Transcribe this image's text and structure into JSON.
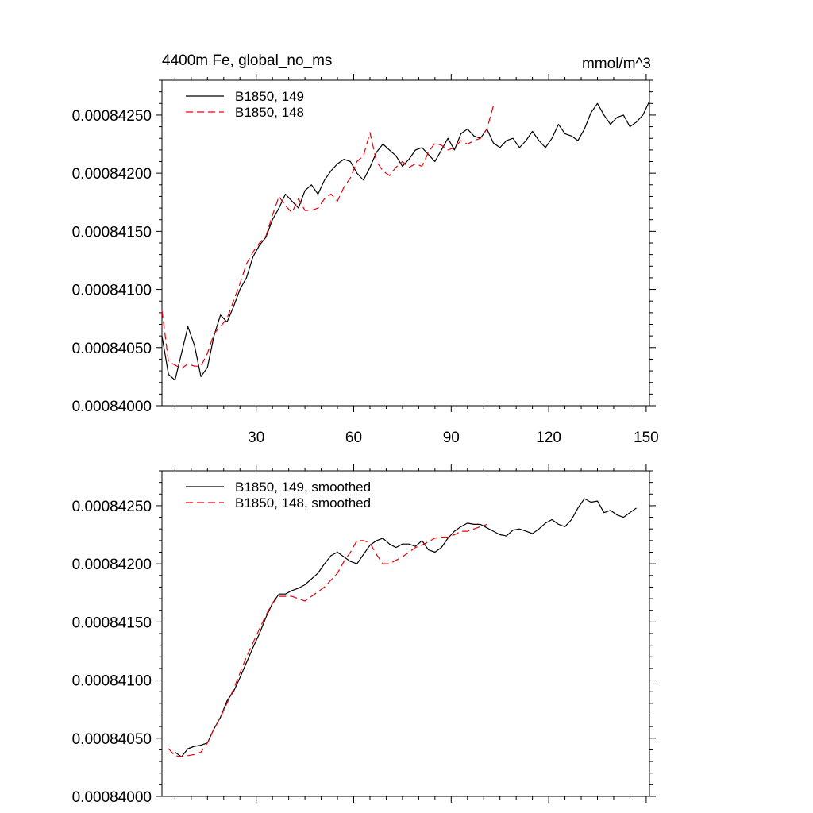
{
  "chart_data": [
    {
      "type": "line",
      "title": "4400m Fe, global_no_ms",
      "units": "mmol/m^3",
      "xlim": [
        1,
        151
      ],
      "ylim": [
        0.00084,
        0.0008428
      ],
      "xticks": [
        30,
        60,
        90,
        120,
        150
      ],
      "xtick_labels": [
        "30",
        "60",
        "90",
        "120",
        "150"
      ],
      "yticks": [
        0.00084,
        0.0008405,
        0.000841,
        0.0008415,
        0.000842,
        0.0008425
      ],
      "ytick_labels": [
        "0.00084000",
        "0.00084050",
        "0.00084100",
        "0.00084150",
        "0.00084200",
        "0.00084250"
      ],
      "legend_position": "top-left",
      "series": [
        {
          "name": "B1850, 149",
          "color": "#000000",
          "dash": "solid",
          "x": [
            1,
            3,
            5,
            7,
            9,
            11,
            13,
            15,
            17,
            19,
            21,
            23,
            25,
            27,
            29,
            31,
            33,
            35,
            37,
            39,
            41,
            43,
            45,
            47,
            49,
            51,
            53,
            55,
            57,
            59,
            61,
            63,
            65,
            67,
            69,
            71,
            73,
            75,
            77,
            79,
            81,
            83,
            85,
            87,
            89,
            91,
            93,
            95,
            97,
            99,
            101,
            103,
            105,
            107,
            109,
            111,
            113,
            115,
            117,
            119,
            121,
            123,
            125,
            127,
            129,
            131,
            133,
            135,
            137,
            139,
            141,
            143,
            145,
            147,
            149,
            151
          ],
          "y": [
            0.0008406,
            0.00084027,
            0.00084022,
            0.00084045,
            0.00084068,
            0.00084052,
            0.00084025,
            0.00084033,
            0.0008406,
            0.00084078,
            0.00084072,
            0.00084085,
            0.000841,
            0.0008411,
            0.00084128,
            0.00084138,
            0.00084145,
            0.0008416,
            0.0008417,
            0.00084182,
            0.00084176,
            0.0008417,
            0.00084185,
            0.0008419,
            0.00084182,
            0.00084194,
            0.00084202,
            0.00084208,
            0.00084212,
            0.0008421,
            0.000842,
            0.00084194,
            0.00084205,
            0.00084218,
            0.00084225,
            0.0008422,
            0.00084215,
            0.00084206,
            0.00084212,
            0.0008422,
            0.00084222,
            0.00084216,
            0.0008421,
            0.0008422,
            0.0008423,
            0.0008422,
            0.00084234,
            0.00084238,
            0.00084232,
            0.0008423,
            0.00084238,
            0.00084226,
            0.00084222,
            0.00084228,
            0.0008423,
            0.00084222,
            0.00084228,
            0.00084236,
            0.00084228,
            0.00084222,
            0.0008423,
            0.00084242,
            0.00084234,
            0.00084232,
            0.00084228,
            0.00084238,
            0.00084252,
            0.0008426,
            0.0008425,
            0.00084242,
            0.00084248,
            0.0008425,
            0.0008424,
            0.00084244,
            0.0008425,
            0.00084262
          ]
        },
        {
          "name": "B1850, 148",
          "color": "#e8000b",
          "dash": "dashed",
          "x": [
            1,
            3,
            5,
            7,
            9,
            11,
            13,
            15,
            17,
            19,
            21,
            23,
            25,
            27,
            29,
            31,
            33,
            35,
            37,
            39,
            41,
            43,
            45,
            47,
            49,
            51,
            53,
            55,
            57,
            59,
            61,
            63,
            65,
            67,
            69,
            71,
            73,
            75,
            77,
            79,
            81,
            83,
            85,
            87,
            89,
            91,
            93,
            95,
            97,
            99,
            101,
            103
          ],
          "y": [
            0.00084082,
            0.00084038,
            0.00084035,
            0.00084032,
            0.00084036,
            0.00084034,
            0.00084034,
            0.00084045,
            0.00084062,
            0.00084068,
            0.00084075,
            0.0008409,
            0.00084105,
            0.00084122,
            0.00084132,
            0.0008414,
            0.00084146,
            0.00084164,
            0.0008418,
            0.00084172,
            0.00084166,
            0.00084178,
            0.00084168,
            0.00084168,
            0.0008417,
            0.00084178,
            0.00084182,
            0.00084176,
            0.00084188,
            0.00084196,
            0.0008421,
            0.00084215,
            0.00084235,
            0.0008421,
            0.00084202,
            0.00084198,
            0.00084205,
            0.0008421,
            0.00084205,
            0.00084208,
            0.00084206,
            0.00084218,
            0.00084226,
            0.00084224,
            0.0008422,
            0.00084222,
            0.00084228,
            0.00084225,
            0.00084228,
            0.0008423,
            0.00084238,
            0.00084258
          ]
        }
      ]
    },
    {
      "type": "line",
      "xlim": [
        1,
        151
      ],
      "ylim": [
        0.00084,
        0.0008428
      ],
      "yticks": [
        0.00084,
        0.0008405,
        0.000841,
        0.0008415,
        0.000842,
        0.0008425
      ],
      "ytick_labels": [
        "0.00084000",
        "0.00084050",
        "0.00084100",
        "0.00084150",
        "0.00084200",
        "0.00084250"
      ],
      "xticks": [
        30,
        60,
        90,
        120,
        150
      ],
      "legend_position": "top-left",
      "series": [
        {
          "name": "B1850, 149, smoothed",
          "color": "#000000",
          "dash": "solid",
          "x": [
            5,
            7,
            9,
            11,
            13,
            15,
            17,
            19,
            21,
            23,
            25,
            27,
            29,
            31,
            33,
            35,
            37,
            39,
            41,
            43,
            45,
            47,
            49,
            51,
            53,
            55,
            57,
            59,
            61,
            63,
            65,
            67,
            69,
            71,
            73,
            75,
            77,
            79,
            81,
            83,
            85,
            87,
            89,
            91,
            93,
            95,
            97,
            99,
            101,
            103,
            105,
            107,
            109,
            111,
            113,
            115,
            117,
            119,
            121,
            123,
            125,
            127,
            129,
            131,
            133,
            135,
            137,
            139,
            141,
            143,
            145,
            147
          ],
          "y": [
            0.00084038,
            0.00084034,
            0.00084041,
            0.00084043,
            0.00084044,
            0.00084046,
            0.00084058,
            0.00084068,
            0.00084082,
            0.0008409,
            0.00084102,
            0.00084115,
            0.00084128,
            0.0008414,
            0.00084154,
            0.00084166,
            0.00084174,
            0.00084174,
            0.00084177,
            0.00084179,
            0.00084182,
            0.00084187,
            0.00084192,
            0.000842,
            0.00084207,
            0.0008421,
            0.00084206,
            0.00084202,
            0.000842,
            0.00084208,
            0.00084216,
            0.0008422,
            0.00084222,
            0.00084217,
            0.00084214,
            0.00084217,
            0.00084217,
            0.00084215,
            0.0008422,
            0.00084212,
            0.0008421,
            0.00084214,
            0.00084222,
            0.00084228,
            0.00084232,
            0.00084235,
            0.00084234,
            0.00084234,
            0.00084231,
            0.00084228,
            0.00084225,
            0.00084224,
            0.00084229,
            0.0008423,
            0.00084228,
            0.00084226,
            0.0008423,
            0.00084235,
            0.00084238,
            0.00084234,
            0.00084232,
            0.00084238,
            0.00084248,
            0.00084256,
            0.00084253,
            0.00084254,
            0.00084244,
            0.00084246,
            0.00084242,
            0.0008424,
            0.00084244,
            0.00084248
          ]
        },
        {
          "name": "B1850, 148, smoothed",
          "color": "#e8000b",
          "dash": "dashed",
          "x": [
            3,
            5,
            7,
            9,
            11,
            13,
            15,
            17,
            19,
            21,
            23,
            25,
            27,
            29,
            31,
            33,
            35,
            37,
            39,
            41,
            43,
            45,
            47,
            49,
            51,
            53,
            55,
            57,
            59,
            61,
            63,
            65,
            67,
            69,
            71,
            73,
            75,
            77,
            79,
            81,
            83,
            85,
            87,
            89,
            91,
            93,
            95,
            97,
            99,
            101
          ],
          "y": [
            0.00084041,
            0.00084035,
            0.00084034,
            0.00084035,
            0.00084036,
            0.00084038,
            0.00084046,
            0.00084058,
            0.00084068,
            0.0008408,
            0.00084092,
            0.00084106,
            0.0008412,
            0.00084132,
            0.00084144,
            0.00084156,
            0.00084166,
            0.00084172,
            0.00084172,
            0.00084172,
            0.0008417,
            0.00084168,
            0.00084172,
            0.00084176,
            0.0008418,
            0.00084186,
            0.00084192,
            0.00084202,
            0.0008421,
            0.0008422,
            0.0008422,
            0.00084218,
            0.00084208,
            0.000842,
            0.000842,
            0.00084203,
            0.00084206,
            0.0008421,
            0.00084214,
            0.00084216,
            0.00084219,
            0.00084222,
            0.00084223,
            0.00084223,
            0.00084225,
            0.00084228,
            0.00084228,
            0.0008423,
            0.00084232,
            0.00084234
          ]
        }
      ]
    }
  ]
}
